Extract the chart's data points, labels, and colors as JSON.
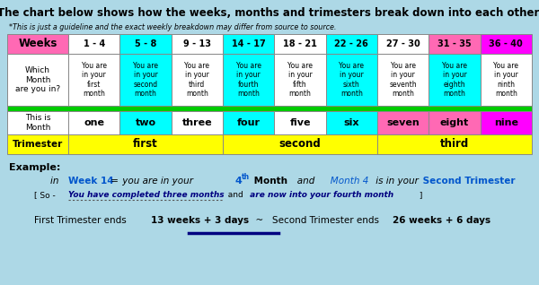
{
  "bg_color": "#add8e6",
  "title": "The chart below shows how the weeks, months and trimesters break down into each other.",
  "subtitle": "*This is just a guideline and the exact weekly breakdown may differ from source to source.",
  "week_ranges": [
    "1 - 4",
    "5 - 8",
    "9 - 13",
    "14 - 17",
    "18 - 21",
    "22 - 26",
    "27 - 30",
    "31 - 35",
    "36 - 40"
  ],
  "month_texts": [
    "You are\nin your\nfirst\nmonth",
    "You are\nin your\nsecond\nmonth",
    "You are\nin your\nthird\nmonth",
    "You are\nin your\nfourth\nmonth",
    "You are\nin your\nfifth\nmonth",
    "You are\nin your\nsixth\nmonth",
    "You are\nin your\nseventh\nmonth",
    "You are\nin your\neighth\nmonth",
    "You are\nin your\nninth\nmonth"
  ],
  "month_names": [
    "one",
    "two",
    "three",
    "four",
    "five",
    "six",
    "seven",
    "eight",
    "nine"
  ],
  "trimester_labels": [
    "first",
    "second",
    "third"
  ],
  "week_col_colors": [
    "#ffffff",
    "#00ffff",
    "#ffffff",
    "#00ffff",
    "#ffffff",
    "#00ffff",
    "#ffffff",
    "#ff69b4",
    "#ff00ff"
  ],
  "month_row_colors": [
    "#ffffff",
    "#00ffff",
    "#ffffff",
    "#00ffff",
    "#ffffff",
    "#00ffff",
    "#ffffff",
    "#00ffff",
    "#ffffff"
  ],
  "mname_colors": [
    "#ffffff",
    "#00ffff",
    "#ffffff",
    "#00ffff",
    "#ffffff",
    "#00ffff",
    "#ff69b4",
    "#ff69b4",
    "#ff00ff"
  ],
  "week_header_color": "#ff69b4",
  "month_header_color": "#ffffff",
  "mname_header_color": "#ffffff",
  "trimester_header_color": "#ffff00",
  "trimester_cell_color": "#ffff00",
  "green_bar_color": "#00cc00",
  "highlight_blue": "#0055cc"
}
